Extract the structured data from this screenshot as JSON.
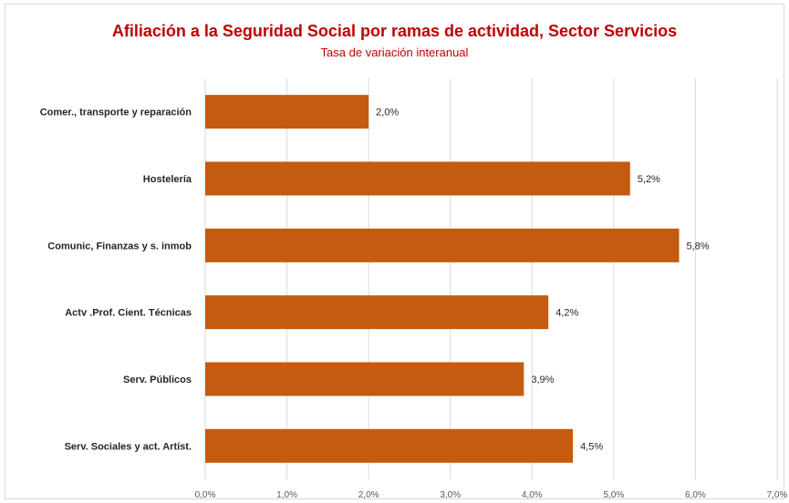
{
  "chart_data": {
    "type": "bar",
    "orientation": "horizontal",
    "title": "Afiliación a la Seguridad Social por ramas de actividad, Sector Servicios",
    "subtitle": "Tasa de variación interanual",
    "categories": [
      "Comer., transporte y reparación",
      "Hostelería",
      "Comunic, Finanzas y s. inmob",
      "Actv .Prof. Cient. Técnicas",
      "Serv. Públicos",
      "Serv. Sociales y act. Artíst."
    ],
    "values": [
      2.0,
      5.2,
      5.8,
      4.2,
      3.9,
      4.5
    ],
    "value_labels": [
      "2,0%",
      "5,2%",
      "5,8%",
      "4,2%",
      "3,9%",
      "4,5%"
    ],
    "x_ticks": [
      "0,0%",
      "1,0%",
      "2,0%",
      "3,0%",
      "4,0%",
      "5,0%",
      "6,0%",
      "7,0%"
    ],
    "xlim": [
      0,
      7
    ],
    "grid": "vertical",
    "legend": "none",
    "bar_color": "#c55a11",
    "grid_color": "#d9d9d9",
    "title_color": "#c00000"
  }
}
